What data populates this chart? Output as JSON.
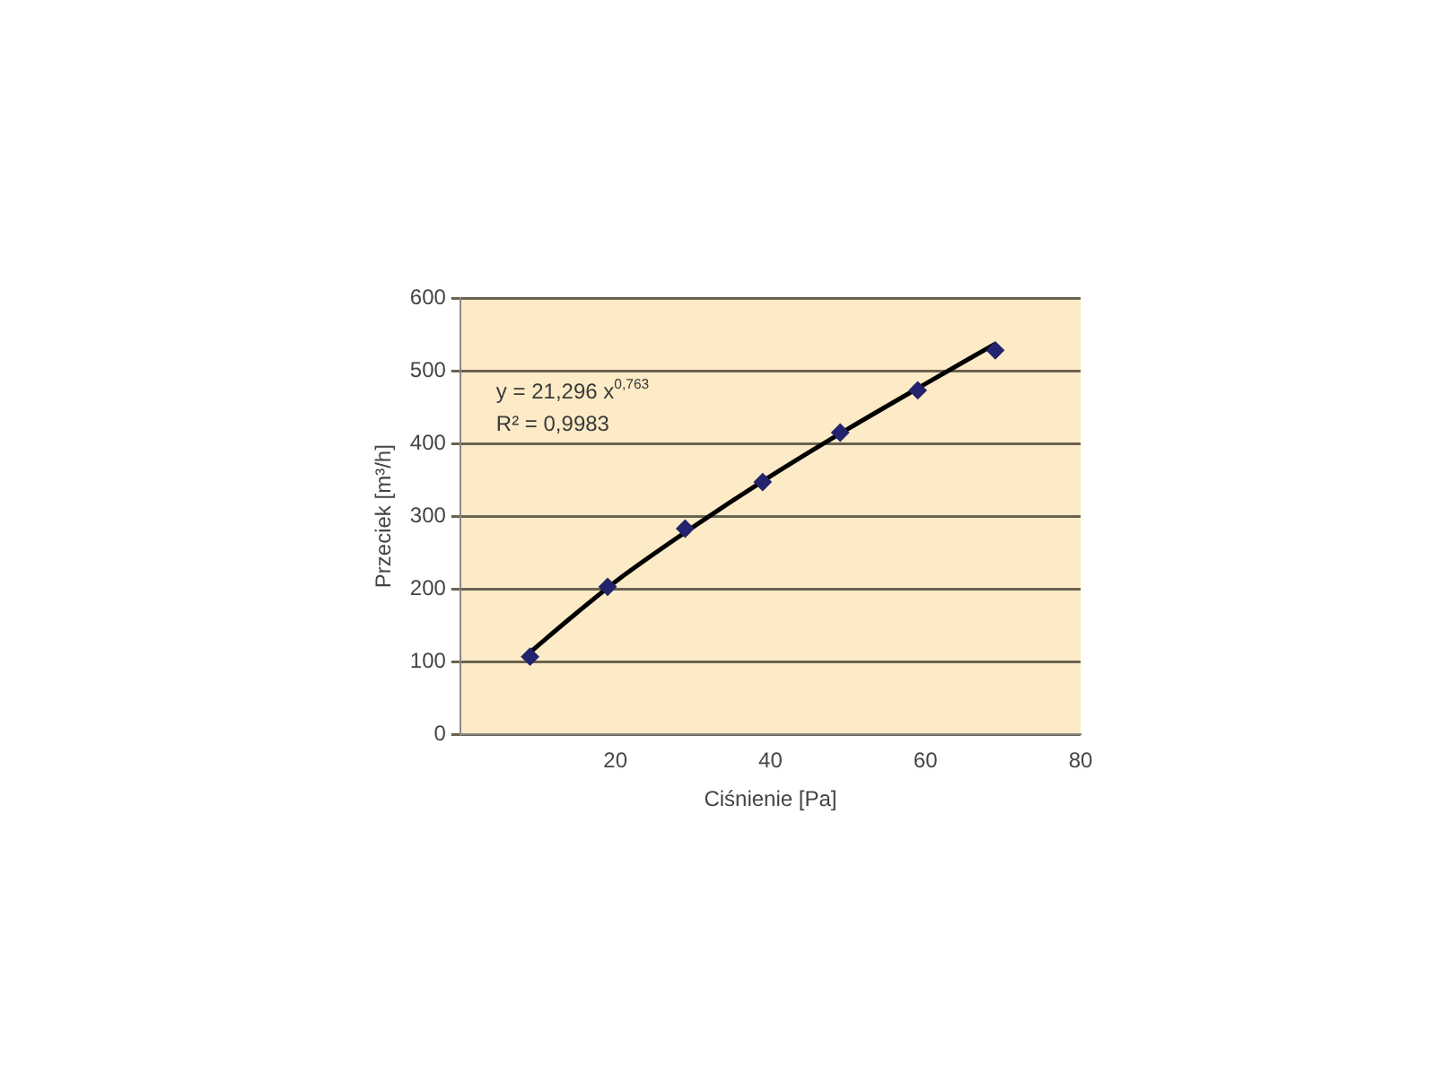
{
  "chart_data": {
    "type": "scatter",
    "xlabel": "Ciśnienie [Pa]",
    "ylabel": "Przeciek [m³/h]",
    "x": [
      9,
      19,
      29,
      39,
      49,
      59,
      69
    ],
    "series": [
      {
        "type": "scatter",
        "color": "#23236e",
        "marker": "diamond",
        "values": [
          107,
          203,
          283,
          347,
          415,
          473,
          528
        ]
      },
      {
        "type": "line",
        "color": "#000000",
        "marker": "none",
        "line_style": "solid",
        "x": [
          9,
          15,
          20,
          30,
          40,
          50,
          60,
          69
        ],
        "values": [
          113,
          167,
          210,
          285,
          355,
          420,
          482,
          537
        ]
      }
    ],
    "xlim": [
      0,
      80
    ],
    "xticks": [
      20,
      40,
      60,
      80
    ],
    "ylim": [
      0,
      600
    ],
    "yticks": [
      0,
      100,
      200,
      300,
      400,
      500,
      600
    ],
    "grid": "y",
    "legend": false,
    "annotations": [
      "y = 21,296 x$^{0,763}$",
      "R² = 0,9983"
    ]
  }
}
